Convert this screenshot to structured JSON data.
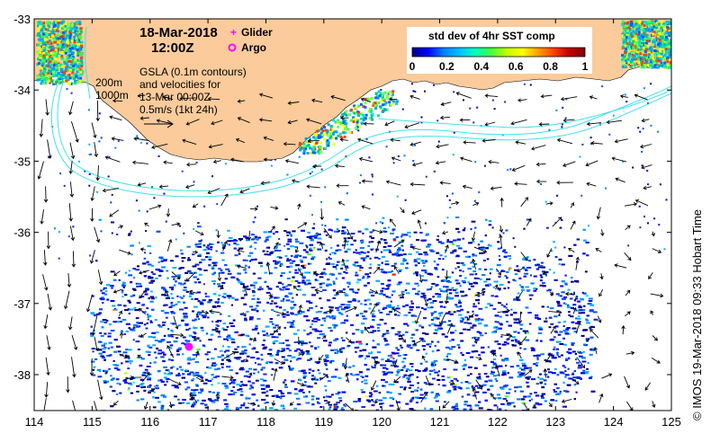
{
  "header": {
    "date": "18-Mar-2018",
    "time": "12:00Z"
  },
  "legend": {
    "glider_label": "Glider",
    "argo_label": "Argo",
    "glider_color": "#ff00ff",
    "argo_color": "#ff00ff"
  },
  "gsla": {
    "line1": "GSLA (0.1m contours)",
    "line2": "and velocities for",
    "line3": "13-Mar 00:00Z",
    "line4": "0.5m/s (1kt 24h)"
  },
  "isobaths": {
    "label_200": "200m",
    "label_1000": "1000m"
  },
  "colorbar": {
    "title": "std dev of 4hr SST comp",
    "ticks": [
      "0",
      "0.2",
      "0.4",
      "0.6",
      "0.8",
      "1"
    ],
    "colors": [
      "#000080",
      "#0000ff",
      "#0080ff",
      "#00c0ff",
      "#00ffc0",
      "#40ff40",
      "#c0ff00",
      "#ffff00",
      "#ffa000",
      "#ff4000",
      "#c00000",
      "#800000"
    ]
  },
  "credit": "©  IMOS 19-Mar-2018 09:33 Hobart Time",
  "axes": {
    "x_ticks": [
      "114",
      "115",
      "116",
      "117",
      "118",
      "119",
      "120",
      "121",
      "122",
      "123",
      "124",
      "125"
    ],
    "y_ticks": [
      "-33",
      "-34",
      "-35",
      "-36",
      "-37",
      "-38"
    ]
  },
  "colors": {
    "land": "#fbcb9b",
    "contour": "#40e0f0",
    "frame": "#000000"
  }
}
